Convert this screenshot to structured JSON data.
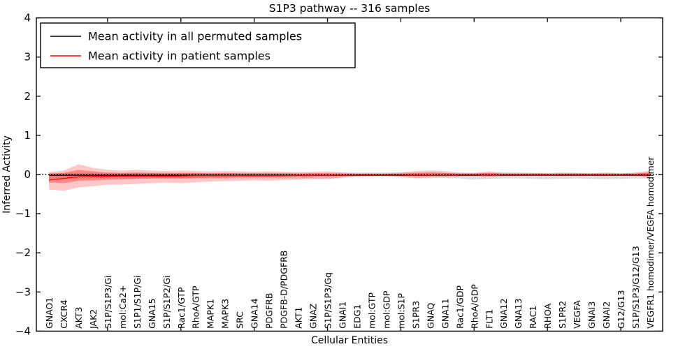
{
  "title": "S1P3 pathway -- 316 samples",
  "axes": {
    "y_label": "Inferred Activity",
    "x_label": "Cellular Entities",
    "y_ticks": [
      4,
      3,
      2,
      1,
      0,
      -1,
      -2,
      -3,
      -4
    ],
    "y_min": -4,
    "y_max": 4
  },
  "legend": {
    "entries": [
      {
        "label": "Mean activity in all permuted samples",
        "color": "#000000"
      },
      {
        "label": "Mean activity in patient samples",
        "color": "#ff0000"
      }
    ]
  },
  "colors": {
    "patient_line": "#ff0000",
    "permuted_line": "#000000",
    "patient_band": "#ff0000",
    "permuted_band": "#999999",
    "frame": "#000000",
    "background": "#ffffff"
  },
  "chart_data": {
    "type": "line",
    "title": "S1P3 pathway -- 316 samples",
    "xlabel": "Cellular Entities",
    "ylabel": "Inferred Activity",
    "ylim": [
      -4,
      4
    ],
    "grid": false,
    "legend_position": "upper-left",
    "zero_line": 0,
    "zero_line_style": "dotted",
    "categories": [
      "GNAO1",
      "CXCR4",
      "AKT3",
      "JAK2",
      "S1P/S1P3/Gi",
      "mol:Ca2+",
      "S1P1/S1P/Gi",
      "GNA15",
      "S1P/S1P2/Gi",
      "Rac1/GTP",
      "RhoA/GTP",
      "MAPK1",
      "MAPK3",
      "SRC",
      "GNA14",
      "PDGFRB",
      "PDGFB-D/PDGFRB",
      "AKT1",
      "GNAZ",
      "S1P/S1P3/Gq",
      "GNAI1",
      "EDG1",
      "mol:GTP",
      "mol:GDP",
      "mol:S1P",
      "S1PR3",
      "GNAQ",
      "GNA11",
      "Rac1/GDP",
      "RhoA/GDP",
      "FLT1",
      "GNA12",
      "GNA13",
      "RAC1",
      "RHOA",
      "S1PR2",
      "VEGFA",
      "GNAI3",
      "GNAI2",
      "G12/G13",
      "S1P/S1P3/G12/G13",
      "VEGFR1 homodimer/VEGFA homodimer"
    ],
    "series": [
      {
        "name": "Mean activity in all permuted samples",
        "color": "#000000",
        "values": [
          -0.02,
          -0.02,
          -0.02,
          -0.02,
          -0.02,
          -0.02,
          -0.02,
          -0.02,
          -0.02,
          -0.02,
          -0.02,
          -0.02,
          -0.02,
          -0.02,
          -0.02,
          -0.02,
          -0.02,
          -0.02,
          -0.02,
          -0.02,
          -0.02,
          -0.02,
          -0.02,
          -0.02,
          -0.02,
          -0.02,
          -0.02,
          -0.02,
          -0.02,
          -0.02,
          -0.02,
          -0.02,
          -0.02,
          -0.02,
          -0.02,
          -0.02,
          -0.02,
          -0.02,
          -0.02,
          -0.02,
          -0.02,
          -0.02
        ]
      },
      {
        "name": "Mean activity in patient samples",
        "color": "#ff0000",
        "values": [
          -0.14,
          -0.1,
          -0.06,
          -0.05,
          -0.05,
          -0.04,
          -0.04,
          -0.04,
          -0.04,
          -0.04,
          -0.03,
          -0.03,
          -0.03,
          -0.03,
          -0.03,
          -0.03,
          -0.03,
          -0.02,
          -0.02,
          -0.02,
          -0.02,
          -0.01,
          -0.01,
          -0.01,
          -0.01,
          -0.02,
          -0.02,
          -0.02,
          -0.01,
          -0.01,
          -0.02,
          -0.01,
          -0.01,
          -0.01,
          -0.01,
          -0.01,
          -0.01,
          -0.01,
          -0.01,
          -0.01,
          -0.01,
          -0.01
        ]
      }
    ],
    "bands": [
      {
        "name": "permuted-samples-band",
        "color": "#999999",
        "opacity": 0.35,
        "upper": [
          0.04,
          0.04,
          0.04,
          0.04,
          0.04,
          0.04,
          0.04,
          0.04,
          0.04,
          0.04,
          0.04,
          0.04,
          0.04,
          0.04,
          0.04,
          0.04,
          0.04,
          0.04,
          0.04,
          0.04,
          0.05,
          0.05,
          0.05,
          0.05,
          0.06,
          0.05,
          0.05,
          0.04,
          0.04,
          0.04,
          0.04,
          0.04,
          0.05,
          0.04,
          0.04,
          0.05,
          0.04,
          0.04,
          0.05,
          0.04,
          0.04,
          0.05
        ],
        "lower": [
          -0.1,
          -0.1,
          -0.1,
          -0.1,
          -0.1,
          -0.1,
          -0.1,
          -0.1,
          -0.1,
          -0.1,
          -0.1,
          -0.1,
          -0.1,
          -0.1,
          -0.1,
          -0.1,
          -0.1,
          -0.1,
          -0.1,
          -0.1,
          -0.08,
          -0.07,
          -0.06,
          -0.06,
          -0.08,
          -0.09,
          -0.08,
          -0.09,
          -0.1,
          -0.13,
          -0.11,
          -0.1,
          -0.1,
          -0.11,
          -0.12,
          -0.11,
          -0.1,
          -0.11,
          -0.12,
          -0.11,
          -0.1,
          -0.1
        ]
      },
      {
        "name": "patient-samples-band-outer",
        "color": "#ff0000",
        "opacity": 0.22,
        "upper": [
          0.06,
          0.1,
          0.26,
          0.17,
          0.12,
          0.1,
          0.12,
          0.1,
          0.09,
          0.1,
          0.09,
          0.08,
          0.09,
          0.08,
          0.07,
          0.08,
          0.07,
          0.06,
          0.07,
          0.08,
          0.05,
          0.03,
          0.03,
          0.03,
          0.04,
          0.09,
          0.1,
          0.09,
          0.05,
          0.04,
          0.08,
          0.05,
          0.04,
          0.04,
          0.03,
          0.04,
          0.04,
          0.03,
          0.04,
          0.03,
          0.05,
          0.1
        ],
        "lower": [
          -0.38,
          -0.42,
          -0.33,
          -0.3,
          -0.26,
          -0.26,
          -0.24,
          -0.22,
          -0.21,
          -0.22,
          -0.2,
          -0.18,
          -0.17,
          -0.16,
          -0.15,
          -0.16,
          -0.14,
          -0.13,
          -0.12,
          -0.12,
          -0.08,
          -0.04,
          -0.03,
          -0.03,
          -0.05,
          -0.09,
          -0.08,
          -0.07,
          -0.05,
          -0.04,
          -0.06,
          -0.04,
          -0.04,
          -0.03,
          -0.03,
          -0.04,
          -0.03,
          -0.03,
          -0.04,
          -0.03,
          -0.04,
          -0.06
        ]
      },
      {
        "name": "patient-samples-band-inner",
        "color": "#ff0000",
        "opacity": 0.32,
        "upper": [
          0.02,
          0.04,
          0.12,
          0.08,
          0.05,
          0.04,
          0.05,
          0.04,
          0.04,
          0.04,
          0.04,
          0.03,
          0.04,
          0.03,
          0.03,
          0.03,
          0.03,
          0.02,
          0.03,
          0.03,
          0.02,
          0.015,
          0.015,
          0.015,
          0.02,
          0.04,
          0.05,
          0.04,
          0.02,
          0.02,
          0.04,
          0.02,
          0.02,
          0.02,
          0.015,
          0.02,
          0.02,
          0.015,
          0.02,
          0.015,
          0.02,
          0.05
        ],
        "lower": [
          -0.2,
          -0.22,
          -0.16,
          -0.15,
          -0.13,
          -0.12,
          -0.11,
          -0.1,
          -0.1,
          -0.1,
          -0.09,
          -0.08,
          -0.08,
          -0.07,
          -0.07,
          -0.07,
          -0.06,
          -0.06,
          -0.05,
          -0.05,
          -0.04,
          -0.02,
          -0.015,
          -0.015,
          -0.02,
          -0.04,
          -0.04,
          -0.03,
          -0.02,
          -0.02,
          -0.03,
          -0.02,
          -0.02,
          -0.015,
          -0.015,
          -0.02,
          -0.015,
          -0.015,
          -0.02,
          -0.015,
          -0.02,
          -0.03
        ]
      }
    ]
  }
}
